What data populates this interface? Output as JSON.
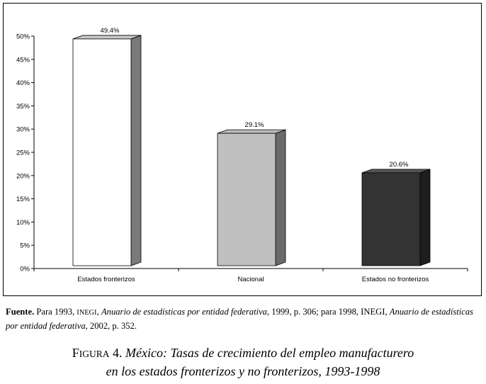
{
  "chart_data": {
    "type": "bar",
    "categories": [
      "Estados fronterizos",
      "Nacional",
      "Estados no fronterizos"
    ],
    "values": [
      49.4,
      29.1,
      20.6
    ],
    "value_labels": [
      "49.4%",
      "29.1%",
      "20.6%"
    ],
    "yticks": [
      "0%",
      "5%",
      "10%",
      "15%",
      "20%",
      "25%",
      "30%",
      "35%",
      "40%",
      "45%",
      "50%"
    ],
    "ylim": [
      0,
      50
    ],
    "bar_colors": [
      "#ffffff",
      "#c0c0c0",
      "#333333"
    ],
    "bar_side_colors": [
      "#7a7a7a",
      "#6a6a6a",
      "#1e1e1e"
    ],
    "bar_top_colors": [
      "#c8c8c8",
      "#bdbdbd",
      "#555555"
    ],
    "grid": false,
    "style": "3d-bar"
  },
  "source": {
    "label": "Fuente.",
    "t1": "Para 1993,",
    "inegi_sc": "INEGI",
    "t2": ",",
    "book1": "Anuario de estadísticas por entidad federativa",
    "t3": ", 1999, p. 306; para 1998, INEGI,",
    "book2a": "Anuario de",
    "book2b": "estadísticas por entidad federativa",
    "t4": ", 2002, p. 352."
  },
  "caption": {
    "fig_initial": "F",
    "fig_rest": "IGURA",
    "fig_number": "4.",
    "line1": "México: Tasas de crecimiento del empleo manufacturero",
    "line2": "en los estados fronterizos y no fronterizos, 1993-1998"
  }
}
